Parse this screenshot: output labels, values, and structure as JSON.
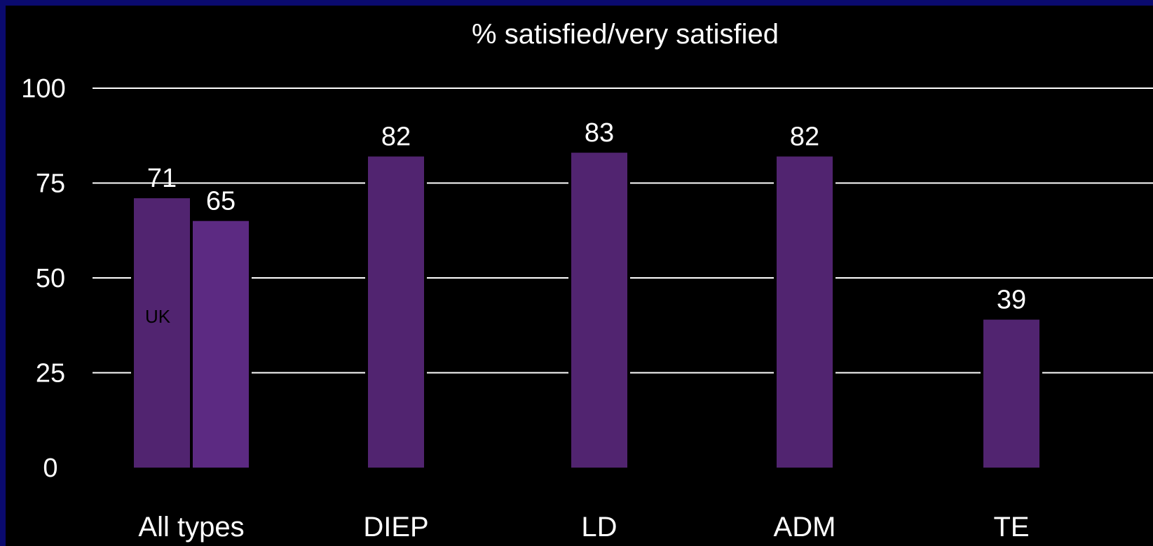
{
  "chart_data": {
    "type": "bar",
    "title": "% satisfied/very satisfied",
    "xlabel": "",
    "ylabel": "",
    "ylim": [
      0,
      100
    ],
    "yticks": [
      0,
      25,
      50,
      75,
      100
    ],
    "grid": true,
    "categories": [
      "All types",
      "DIEP",
      "LD",
      "ADM",
      "TE"
    ],
    "bars": [
      {
        "category": "All types",
        "value": 71,
        "label": "71",
        "inner_label": "UK",
        "color": "#512470"
      },
      {
        "category": "All types",
        "value": 65,
        "label": "65",
        "inner_label": "",
        "color": "#5c2a82"
      },
      {
        "category": "DIEP",
        "value": 82,
        "label": "82",
        "inner_label": "",
        "color": "#512470"
      },
      {
        "category": "LD",
        "value": 83,
        "label": "83",
        "inner_label": "",
        "color": "#512470"
      },
      {
        "category": "ADM",
        "value": 82,
        "label": "82",
        "inner_label": "",
        "color": "#512470"
      },
      {
        "category": "TE",
        "value": 39,
        "label": "39",
        "inner_label": "",
        "color": "#512470"
      }
    ]
  },
  "colors": {
    "background": "#000000",
    "border": "#0a0a6e",
    "text": "#ffffff",
    "gridline": "#ffffff"
  }
}
